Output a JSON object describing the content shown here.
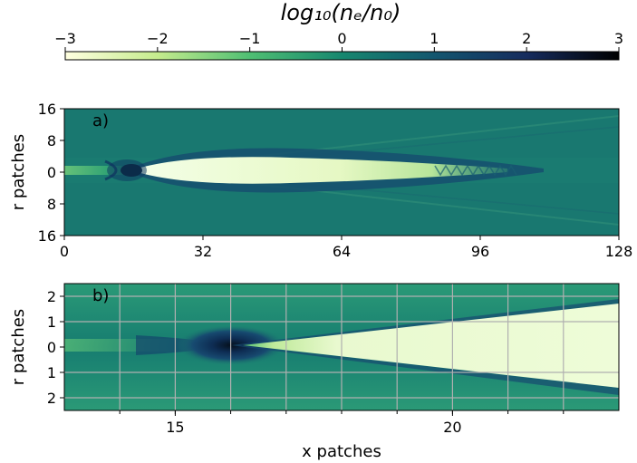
{
  "chart_data": [
    {
      "type": "colorbar",
      "title": "log₁₀(nₑ/n₀)",
      "range": [
        -3,
        3
      ],
      "ticks": [
        "−3",
        "−2",
        "−1",
        "0",
        "1",
        "2",
        "3"
      ],
      "tick_values": [
        -3,
        -2,
        -1,
        0,
        1,
        2,
        3
      ],
      "colormap_stops": [
        {
          "v": -3,
          "color": "#ffffe0"
        },
        {
          "v": -2,
          "color": "#c5ec8d"
        },
        {
          "v": -1,
          "color": "#4fbf73"
        },
        {
          "v": 0,
          "color": "#16876f"
        },
        {
          "v": 1,
          "color": "#13566f"
        },
        {
          "v": 2,
          "color": "#162c5e"
        },
        {
          "v": 3,
          "color": "#000000"
        }
      ]
    },
    {
      "type": "heatmap",
      "panel_label": "a)",
      "ylabel": "r patches",
      "xlim": [
        0,
        128
      ],
      "ylim": [
        -16,
        16
      ],
      "x_ticks": [
        "0",
        "32",
        "64",
        "96",
        "128"
      ],
      "x_tick_values": [
        0,
        32,
        64,
        96,
        128
      ],
      "y_ticks": [
        "16",
        "8",
        "0",
        "8",
        "16"
      ],
      "y_tick_values": [
        16,
        8,
        0,
        -8,
        -16
      ],
      "grid": false,
      "background_color": "#197870"
    },
    {
      "type": "heatmap",
      "panel_label": "b)",
      "xlabel": "x patches",
      "ylabel": "r patches",
      "xlim": [
        13,
        23
      ],
      "ylim": [
        -2.5,
        2.5
      ],
      "x_ticks": [
        "15",
        "20"
      ],
      "x_tick_values": [
        15,
        20
      ],
      "y_ticks": [
        "2",
        "1",
        "0",
        "1",
        "2"
      ],
      "y_tick_values": [
        2,
        1,
        0,
        -1,
        -2
      ],
      "grid": true,
      "grid_x": [
        14,
        15,
        16,
        17,
        18,
        19,
        20,
        21,
        22
      ],
      "grid_y": [
        -2,
        -1,
        1,
        2
      ],
      "background_color": "#1f8a72"
    }
  ]
}
